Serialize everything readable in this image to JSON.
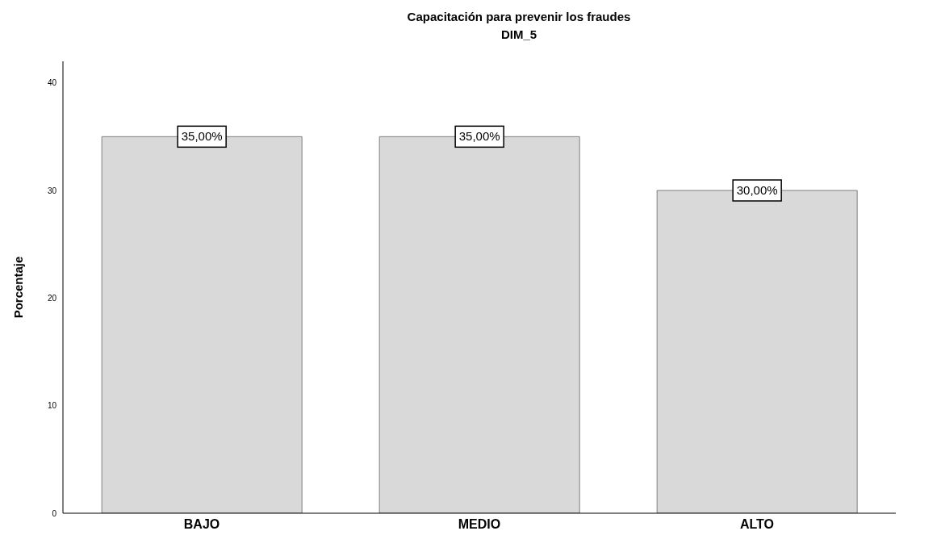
{
  "chart_data": {
    "type": "bar",
    "title": "Capacitación para prevenir los fraudes",
    "subtitle": "DIM_5",
    "ylabel": "Porcentaje",
    "categories": [
      "BAJO",
      "MEDIO",
      "ALTO"
    ],
    "values": [
      35,
      35,
      30
    ],
    "value_labels": [
      "35,00%",
      "35,00%",
      "30,00%"
    ],
    "color": "#d9d9d9",
    "ylim": [
      0,
      42
    ],
    "yticks": [
      0,
      10,
      20,
      30,
      40
    ],
    "grid": false,
    "legend": false
  }
}
